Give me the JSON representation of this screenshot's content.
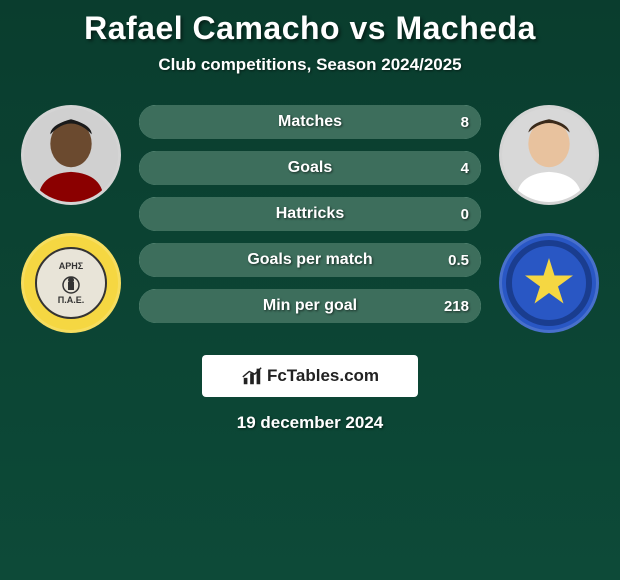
{
  "header": {
    "title": "Rafael Camacho vs Macheda",
    "subtitle": "Club competitions, Season 2024/2025"
  },
  "players": {
    "left": {
      "name": "Rafael Camacho",
      "skin": "#6b4a2f",
      "shirt": "#8B0000"
    },
    "right": {
      "name": "Macheda",
      "skin": "#e8c29e",
      "shirt": "#ffffff"
    }
  },
  "clubs": {
    "left": {
      "name": "Aris",
      "badge_text_top": "ΑΡΗΣ",
      "badge_text_bot": "Π.Α.Ε.",
      "bg": "#f5d742"
    },
    "right": {
      "name": "Asteras Tripolis",
      "bg": "#2957c4",
      "star": "#f5d742"
    }
  },
  "stats": {
    "bar_border_color": "#a8d5c5",
    "bar_fill_color": "#3d6e5c",
    "text_color": "#ffffff",
    "rows": [
      {
        "label": "Matches",
        "left": "",
        "right": "8",
        "left_pct": 0,
        "right_pct": 100
      },
      {
        "label": "Goals",
        "left": "",
        "right": "4",
        "left_pct": 0,
        "right_pct": 100
      },
      {
        "label": "Hattricks",
        "left": "",
        "right": "0",
        "left_pct": 0,
        "right_pct": 100
      },
      {
        "label": "Goals per match",
        "left": "",
        "right": "0.5",
        "left_pct": 0,
        "right_pct": 100
      },
      {
        "label": "Min per goal",
        "left": "",
        "right": "218",
        "left_pct": 0,
        "right_pct": 100
      }
    ]
  },
  "branding": {
    "text": "FcTables.com"
  },
  "date": "19 december 2024",
  "colors": {
    "bg_top": "#0a3d2e",
    "bg_bottom": "#0d4a38"
  }
}
